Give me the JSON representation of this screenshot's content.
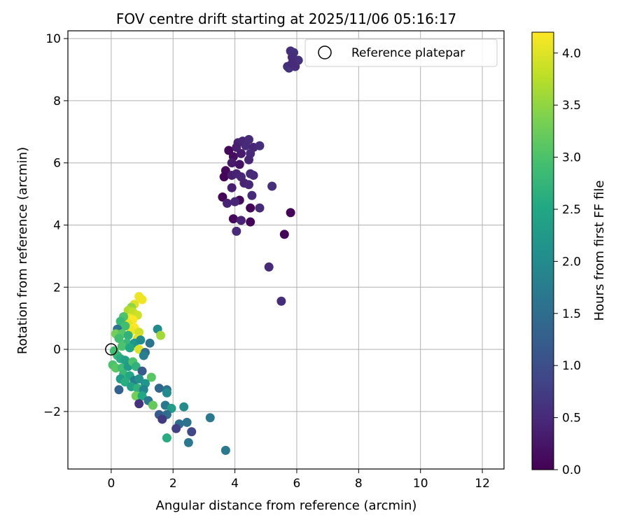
{
  "chart_data": {
    "type": "scatter",
    "title": "FOV centre drift starting at 2025/11/06 05:16:17",
    "xlabel": "Angular distance from reference (arcmin)",
    "ylabel": "Rotation from reference (arcmin)",
    "xlim": [
      -1.4,
      12.7
    ],
    "ylim": [
      -3.85,
      10.25
    ],
    "xticks": [
      0,
      2,
      4,
      6,
      8,
      10,
      12
    ],
    "yticks": [
      -2,
      0,
      2,
      4,
      6,
      8,
      10
    ],
    "grid": true,
    "legend": {
      "position": "top-right",
      "label": "Reference platepar"
    },
    "reference_point": {
      "x": 0,
      "y": 0
    },
    "colorbar": {
      "label": "Hours from first FF file",
      "min": 0.0,
      "max": 4.2,
      "ticks": [
        "0.0",
        "0.5",
        "1.0",
        "1.5",
        "2.0",
        "2.5",
        "3.0",
        "3.5",
        "4.0"
      ],
      "colormap": "viridis",
      "stops": [
        "#440154",
        "#482475",
        "#414487",
        "#355f8d",
        "#2a788e",
        "#21918c",
        "#22a884",
        "#44bf70",
        "#7ad151",
        "#bddf26",
        "#fde725"
      ]
    },
    "points": [
      {
        "x": 5.8,
        "y": 9.6,
        "c": 0.55
      },
      {
        "x": 5.9,
        "y": 9.55,
        "c": 0.6
      },
      {
        "x": 5.85,
        "y": 9.4,
        "c": 0.55
      },
      {
        "x": 6.05,
        "y": 9.3,
        "c": 0.6
      },
      {
        "x": 5.7,
        "y": 9.1,
        "c": 0.55
      },
      {
        "x": 5.75,
        "y": 9.05,
        "c": 0.6
      },
      {
        "x": 5.95,
        "y": 9.1,
        "c": 0.55
      },
      {
        "x": 5.85,
        "y": 9.2,
        "c": 0.5
      },
      {
        "x": 3.8,
        "y": 6.4,
        "c": 0.1
      },
      {
        "x": 3.95,
        "y": 6.2,
        "c": 0.15
      },
      {
        "x": 4.1,
        "y": 6.65,
        "c": 0.4
      },
      {
        "x": 4.25,
        "y": 6.7,
        "c": 0.45
      },
      {
        "x": 4.45,
        "y": 6.75,
        "c": 0.5
      },
      {
        "x": 4.35,
        "y": 6.55,
        "c": 0.5
      },
      {
        "x": 4.6,
        "y": 6.5,
        "c": 0.45
      },
      {
        "x": 4.8,
        "y": 6.55,
        "c": 0.55
      },
      {
        "x": 4.2,
        "y": 6.3,
        "c": 0.3
      },
      {
        "x": 4.5,
        "y": 6.3,
        "c": 0.5
      },
      {
        "x": 4.05,
        "y": 6.5,
        "c": 0.35
      },
      {
        "x": 3.9,
        "y": 6.0,
        "c": 0.3
      },
      {
        "x": 4.15,
        "y": 5.95,
        "c": 0.2
      },
      {
        "x": 4.45,
        "y": 6.1,
        "c": 0.45
      },
      {
        "x": 3.7,
        "y": 5.75,
        "c": 0.1
      },
      {
        "x": 3.65,
        "y": 5.55,
        "c": 0.05
      },
      {
        "x": 3.9,
        "y": 5.6,
        "c": 0.35
      },
      {
        "x": 4.05,
        "y": 5.65,
        "c": 0.4
      },
      {
        "x": 4.2,
        "y": 5.55,
        "c": 0.45
      },
      {
        "x": 4.5,
        "y": 5.65,
        "c": 0.5
      },
      {
        "x": 4.6,
        "y": 5.6,
        "c": 0.5
      },
      {
        "x": 4.3,
        "y": 5.35,
        "c": 0.4
      },
      {
        "x": 4.45,
        "y": 5.3,
        "c": 0.45
      },
      {
        "x": 3.9,
        "y": 5.2,
        "c": 0.35
      },
      {
        "x": 5.2,
        "y": 5.25,
        "c": 0.55
      },
      {
        "x": 4.55,
        "y": 4.95,
        "c": 0.5
      },
      {
        "x": 3.6,
        "y": 4.9,
        "c": 0.05
      },
      {
        "x": 4.15,
        "y": 4.8,
        "c": 0.1
      },
      {
        "x": 3.75,
        "y": 4.7,
        "c": 0.4
      },
      {
        "x": 4.0,
        "y": 4.75,
        "c": 0.45
      },
      {
        "x": 4.8,
        "y": 4.55,
        "c": 0.5
      },
      {
        "x": 4.5,
        "y": 4.55,
        "c": 0.05
      },
      {
        "x": 5.8,
        "y": 4.4,
        "c": 0.05
      },
      {
        "x": 3.95,
        "y": 4.2,
        "c": 0.1
      },
      {
        "x": 4.2,
        "y": 4.15,
        "c": 0.4
      },
      {
        "x": 4.5,
        "y": 4.1,
        "c": 0.05
      },
      {
        "x": 4.05,
        "y": 3.8,
        "c": 0.5
      },
      {
        "x": 5.6,
        "y": 3.7,
        "c": 0.05
      },
      {
        "x": 5.1,
        "y": 2.65,
        "c": 0.5
      },
      {
        "x": 5.5,
        "y": 1.55,
        "c": 0.55
      },
      {
        "x": 0.9,
        "y": 1.7,
        "c": 4.1
      },
      {
        "x": 1.0,
        "y": 1.6,
        "c": 4.1
      },
      {
        "x": 0.75,
        "y": 1.45,
        "c": 4.0
      },
      {
        "x": 0.65,
        "y": 1.35,
        "c": 3.5
      },
      {
        "x": 0.55,
        "y": 1.25,
        "c": 3.7
      },
      {
        "x": 0.7,
        "y": 1.2,
        "c": 3.8
      },
      {
        "x": 0.85,
        "y": 1.1,
        "c": 3.9
      },
      {
        "x": 0.6,
        "y": 1.0,
        "c": 4.1
      },
      {
        "x": 0.7,
        "y": 0.95,
        "c": 4.2
      },
      {
        "x": 0.55,
        "y": 0.85,
        "c": 4.1
      },
      {
        "x": 0.6,
        "y": 0.75,
        "c": 4.0
      },
      {
        "x": 0.75,
        "y": 0.7,
        "c": 4.2
      },
      {
        "x": 0.65,
        "y": 0.6,
        "c": 4.1
      },
      {
        "x": 0.9,
        "y": 0.55,
        "c": 3.9
      },
      {
        "x": 0.85,
        "y": 0.35,
        "c": 4.0
      },
      {
        "x": 0.4,
        "y": 1.05,
        "c": 3.0
      },
      {
        "x": 0.3,
        "y": 0.9,
        "c": 2.8
      },
      {
        "x": 0.45,
        "y": 0.75,
        "c": 2.9
      },
      {
        "x": 0.2,
        "y": 0.65,
        "c": 1.6
      },
      {
        "x": 0.15,
        "y": 0.5,
        "c": 3.3
      },
      {
        "x": 0.35,
        "y": 0.5,
        "c": 3.1
      },
      {
        "x": 0.55,
        "y": 0.45,
        "c": 2.7
      },
      {
        "x": 0.25,
        "y": 0.35,
        "c": 2.9
      },
      {
        "x": 0.5,
        "y": 0.2,
        "c": 2.8
      },
      {
        "x": 0.75,
        "y": 0.2,
        "c": 2.2
      },
      {
        "x": 0.95,
        "y": 0.3,
        "c": 2.0
      },
      {
        "x": 0.35,
        "y": 0.1,
        "c": 3.0
      },
      {
        "x": 0.6,
        "y": 0.05,
        "c": 2.5
      },
      {
        "x": 0.9,
        "y": 0.0,
        "c": 4.0
      },
      {
        "x": 1.1,
        "y": -0.1,
        "c": 1.5
      },
      {
        "x": 1.05,
        "y": -0.2,
        "c": 1.8
      },
      {
        "x": 1.25,
        "y": 0.2,
        "c": 1.6
      },
      {
        "x": 1.5,
        "y": 0.65,
        "c": 2.0
      },
      {
        "x": 1.6,
        "y": 0.45,
        "c": 3.6
      },
      {
        "x": 0.1,
        "y": -0.05,
        "c": 2.9
      },
      {
        "x": 0.2,
        "y": -0.2,
        "c": 2.8
      },
      {
        "x": 0.05,
        "y": -0.5,
        "c": 3.0
      },
      {
        "x": 0.3,
        "y": -0.3,
        "c": 2.6
      },
      {
        "x": 0.45,
        "y": -0.35,
        "c": 2.4
      },
      {
        "x": 0.15,
        "y": -0.6,
        "c": 3.1
      },
      {
        "x": 0.35,
        "y": -0.6,
        "c": 2.9
      },
      {
        "x": 0.55,
        "y": -0.55,
        "c": 2.3
      },
      {
        "x": 0.7,
        "y": -0.4,
        "c": 3.0
      },
      {
        "x": 0.8,
        "y": -0.55,
        "c": 2.7
      },
      {
        "x": 1.0,
        "y": -0.7,
        "c": 1.2
      },
      {
        "x": 0.4,
        "y": -0.8,
        "c": 2.8
      },
      {
        "x": 0.6,
        "y": -0.85,
        "c": 2.5
      },
      {
        "x": 0.3,
        "y": -0.95,
        "c": 2.3
      },
      {
        "x": 0.45,
        "y": -1.05,
        "c": 2.6
      },
      {
        "x": 0.75,
        "y": -1.0,
        "c": 1.8
      },
      {
        "x": 0.9,
        "y": -0.95,
        "c": 2.1
      },
      {
        "x": 1.3,
        "y": -0.9,
        "c": 3.1
      },
      {
        "x": 1.1,
        "y": -1.1,
        "c": 2.2
      },
      {
        "x": 0.65,
        "y": -1.2,
        "c": 2.4
      },
      {
        "x": 0.85,
        "y": -1.25,
        "c": 2.7
      },
      {
        "x": 1.05,
        "y": -1.3,
        "c": 1.9
      },
      {
        "x": 0.25,
        "y": -1.3,
        "c": 1.3
      },
      {
        "x": 1.55,
        "y": -1.25,
        "c": 1.4
      },
      {
        "x": 1.8,
        "y": -1.3,
        "c": 1.6
      },
      {
        "x": 1.8,
        "y": -1.4,
        "c": 2.0
      },
      {
        "x": 0.8,
        "y": -1.5,
        "c": 3.3
      },
      {
        "x": 1.0,
        "y": -1.5,
        "c": 2.5
      },
      {
        "x": 0.9,
        "y": -1.75,
        "c": 0.6
      },
      {
        "x": 1.2,
        "y": -1.65,
        "c": 1.7
      },
      {
        "x": 1.35,
        "y": -1.8,
        "c": 3.2
      },
      {
        "x": 1.75,
        "y": -1.8,
        "c": 1.7
      },
      {
        "x": 2.35,
        "y": -1.85,
        "c": 2.0
      },
      {
        "x": 1.95,
        "y": -1.9,
        "c": 2.3
      },
      {
        "x": 1.55,
        "y": -2.1,
        "c": 1.2
      },
      {
        "x": 1.8,
        "y": -2.1,
        "c": 1.5
      },
      {
        "x": 1.65,
        "y": -2.25,
        "c": 0.7
      },
      {
        "x": 2.2,
        "y": -2.4,
        "c": 1.5
      },
      {
        "x": 2.45,
        "y": -2.35,
        "c": 1.6
      },
      {
        "x": 3.2,
        "y": -2.2,
        "c": 1.7
      },
      {
        "x": 2.1,
        "y": -2.55,
        "c": 0.8
      },
      {
        "x": 2.6,
        "y": -2.65,
        "c": 0.9
      },
      {
        "x": 1.8,
        "y": -2.85,
        "c": 2.6
      },
      {
        "x": 2.5,
        "y": -3.0,
        "c": 1.7
      },
      {
        "x": 3.7,
        "y": -3.25,
        "c": 1.7
      }
    ]
  }
}
